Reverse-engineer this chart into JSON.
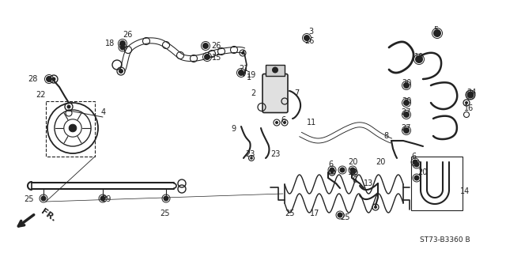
{
  "bg_color": "#ffffff",
  "line_color": "#222222",
  "diagram_code": "ST73-B3360 B",
  "fig_width": 6.4,
  "fig_height": 3.2,
  "dpi": 100
}
